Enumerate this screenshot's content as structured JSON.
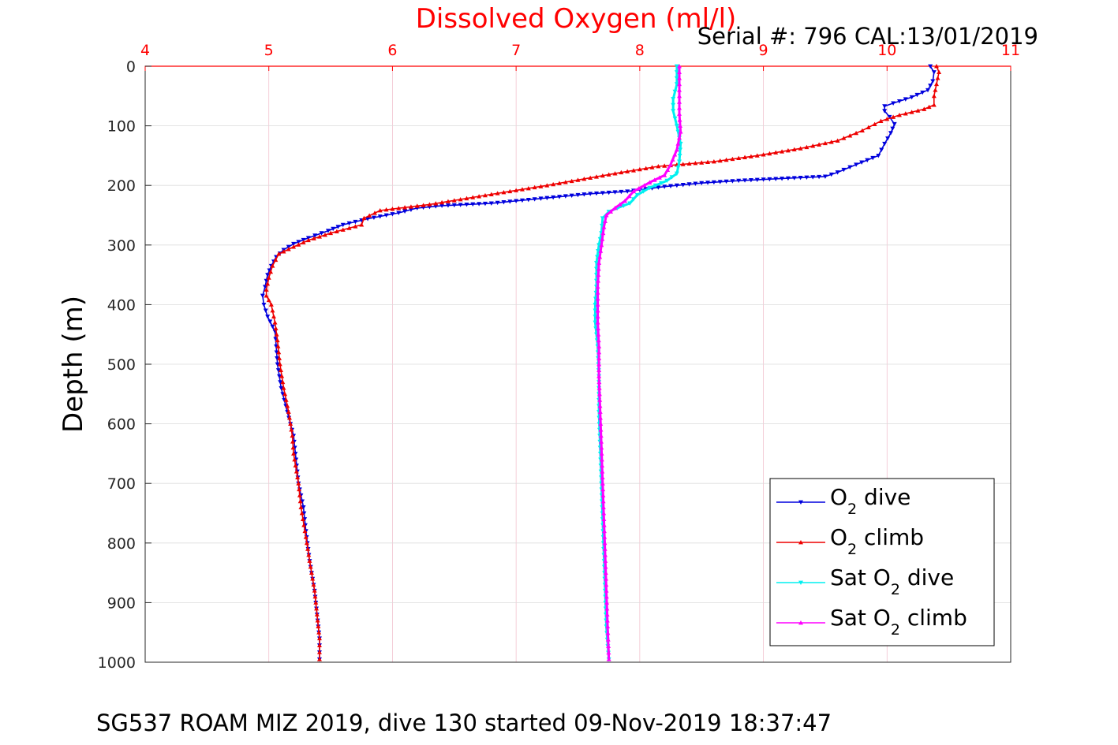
{
  "colors": {
    "o2_dive": "#0000dd",
    "o2_climb": "#ee0000",
    "sat_dive": "#00f0f0",
    "sat_climb": "#ff00ff",
    "grid_x": "#f2c2cf",
    "grid_y": "#dcdcdc",
    "axis_top": "#ff0000",
    "axis_left": "#262626"
  },
  "chart_data": {
    "type": "line",
    "title": "Dissolved Oxygen (ml/l)",
    "annotation": "Serial #: 796  CAL:13/01/2019",
    "footer": "SG537 ROAM MIZ 2019, dive 130 started 09-Nov-2019 18:37:47",
    "xlabel": "",
    "ylabel": "Depth (m)",
    "xlim": [
      4,
      11
    ],
    "ylim": [
      0,
      1000
    ],
    "y_reversed": true,
    "x_axis_location": "top",
    "xticks": [
      "4",
      "5",
      "6",
      "7",
      "8",
      "9",
      "10",
      "11"
    ],
    "yticks": [
      "0",
      "100",
      "200",
      "300",
      "400",
      "500",
      "600",
      "700",
      "800",
      "900",
      "1000"
    ],
    "grid": true,
    "legend_location": "bottom-right",
    "series": [
      {
        "key": "o2_dive",
        "legend_prefix": "O",
        "legend_sub": "2",
        "legend_suffix": " dive",
        "marker": "triangle-down",
        "points": [
          [
            10.35,
            0
          ],
          [
            10.38,
            10
          ],
          [
            10.37,
            25
          ],
          [
            10.33,
            40
          ],
          [
            10.2,
            52
          ],
          [
            10.05,
            62
          ],
          [
            9.98,
            67
          ],
          [
            9.98,
            75
          ],
          [
            10.02,
            85
          ],
          [
            10.06,
            97
          ],
          [
            10.03,
            112
          ],
          [
            9.98,
            130
          ],
          [
            9.93,
            150
          ],
          [
            9.75,
            165
          ],
          [
            9.6,
            178
          ],
          [
            9.5,
            185
          ],
          [
            9.2,
            188
          ],
          [
            8.8,
            192
          ],
          [
            8.5,
            196
          ],
          [
            8.2,
            202
          ],
          [
            7.9,
            210
          ],
          [
            7.6,
            214
          ],
          [
            7.2,
            222
          ],
          [
            6.8,
            230
          ],
          [
            6.4,
            234
          ],
          [
            6.2,
            238
          ],
          [
            6.05,
            246
          ],
          [
            5.8,
            256
          ],
          [
            5.6,
            266
          ],
          [
            5.48,
            276
          ],
          [
            5.32,
            288
          ],
          [
            5.2,
            298
          ],
          [
            5.12,
            308
          ],
          [
            5.06,
            320
          ],
          [
            5.02,
            335
          ],
          [
            4.99,
            350
          ],
          [
            4.97,
            370
          ],
          [
            4.95,
            385
          ],
          [
            4.96,
            400
          ],
          [
            4.99,
            420
          ],
          [
            5.05,
            445
          ],
          [
            5.06,
            470
          ],
          [
            5.07,
            500
          ],
          [
            5.1,
            540
          ],
          [
            5.15,
            580
          ],
          [
            5.2,
            620
          ],
          [
            5.22,
            660
          ],
          [
            5.24,
            700
          ],
          [
            5.28,
            740
          ],
          [
            5.3,
            780
          ],
          [
            5.33,
            830
          ],
          [
            5.37,
            880
          ],
          [
            5.39,
            920
          ],
          [
            5.41,
            960
          ],
          [
            5.41,
            995
          ]
        ]
      },
      {
        "key": "o2_climb",
        "legend_prefix": "O",
        "legend_sub": "2",
        "legend_suffix": " climb",
        "marker": "triangle-up",
        "points": [
          [
            5.41,
            995
          ],
          [
            5.41,
            960
          ],
          [
            5.39,
            920
          ],
          [
            5.37,
            880
          ],
          [
            5.33,
            830
          ],
          [
            5.3,
            790
          ],
          [
            5.26,
            740
          ],
          [
            5.24,
            700
          ],
          [
            5.2,
            650
          ],
          [
            5.19,
            620
          ],
          [
            5.16,
            580
          ],
          [
            5.12,
            540
          ],
          [
            5.09,
            500
          ],
          [
            5.07,
            460
          ],
          [
            5.05,
            430
          ],
          [
            5.02,
            400
          ],
          [
            4.98,
            385
          ],
          [
            4.98,
            375
          ],
          [
            5.0,
            355
          ],
          [
            5.03,
            335
          ],
          [
            5.08,
            315
          ],
          [
            5.2,
            303
          ],
          [
            5.32,
            292
          ],
          [
            5.5,
            280
          ],
          [
            5.75,
            266
          ],
          [
            5.77,
            255
          ],
          [
            5.9,
            242
          ],
          [
            6.3,
            232
          ],
          [
            6.8,
            215
          ],
          [
            7.25,
            200
          ],
          [
            7.8,
            180
          ],
          [
            8.15,
            168
          ],
          [
            8.6,
            160
          ],
          [
            8.95,
            150
          ],
          [
            9.3,
            138
          ],
          [
            9.6,
            125
          ],
          [
            9.8,
            108
          ],
          [
            9.95,
            92
          ],
          [
            10.1,
            82
          ],
          [
            10.3,
            72
          ],
          [
            10.38,
            65
          ],
          [
            10.38,
            50
          ],
          [
            10.4,
            30
          ],
          [
            10.42,
            10
          ],
          [
            10.4,
            0
          ]
        ]
      },
      {
        "key": "sat_dive",
        "legend_prefix": "Sat O",
        "legend_sub": "2",
        "legend_suffix": " dive",
        "marker": "triangle-down",
        "points": [
          [
            8.3,
            0
          ],
          [
            8.3,
            30
          ],
          [
            8.27,
            55
          ],
          [
            8.27,
            75
          ],
          [
            8.3,
            100
          ],
          [
            8.33,
            130
          ],
          [
            8.32,
            160
          ],
          [
            8.3,
            180
          ],
          [
            8.22,
            192
          ],
          [
            8.08,
            204
          ],
          [
            7.98,
            216
          ],
          [
            7.92,
            230
          ],
          [
            7.82,
            238
          ],
          [
            7.75,
            244
          ],
          [
            7.7,
            255
          ],
          [
            7.69,
            280
          ],
          [
            7.67,
            300
          ],
          [
            7.65,
            330
          ],
          [
            7.65,
            370
          ],
          [
            7.64,
            400
          ],
          [
            7.64,
            430
          ],
          [
            7.66,
            470
          ],
          [
            7.67,
            520
          ],
          [
            7.67,
            580
          ],
          [
            7.68,
            640
          ],
          [
            7.69,
            700
          ],
          [
            7.7,
            760
          ],
          [
            7.71,
            820
          ],
          [
            7.72,
            880
          ],
          [
            7.73,
            940
          ],
          [
            7.75,
            995
          ]
        ]
      },
      {
        "key": "sat_climb",
        "legend_prefix": "Sat O",
        "legend_sub": "2",
        "legend_suffix": " climb",
        "marker": "triangle-up",
        "points": [
          [
            7.75,
            995
          ],
          [
            7.74,
            940
          ],
          [
            7.73,
            880
          ],
          [
            7.72,
            820
          ],
          [
            7.71,
            760
          ],
          [
            7.7,
            700
          ],
          [
            7.69,
            640
          ],
          [
            7.68,
            580
          ],
          [
            7.67,
            520
          ],
          [
            7.67,
            470
          ],
          [
            7.66,
            430
          ],
          [
            7.66,
            400
          ],
          [
            7.66,
            370
          ],
          [
            7.67,
            330
          ],
          [
            7.69,
            300
          ],
          [
            7.71,
            270
          ],
          [
            7.73,
            250
          ],
          [
            7.8,
            238
          ],
          [
            7.88,
            226
          ],
          [
            7.95,
            210
          ],
          [
            8.08,
            195
          ],
          [
            8.2,
            183
          ],
          [
            8.25,
            165
          ],
          [
            8.3,
            140
          ],
          [
            8.33,
            110
          ],
          [
            8.32,
            80
          ],
          [
            8.32,
            50
          ],
          [
            8.32,
            20
          ],
          [
            8.32,
            0
          ]
        ]
      }
    ]
  }
}
